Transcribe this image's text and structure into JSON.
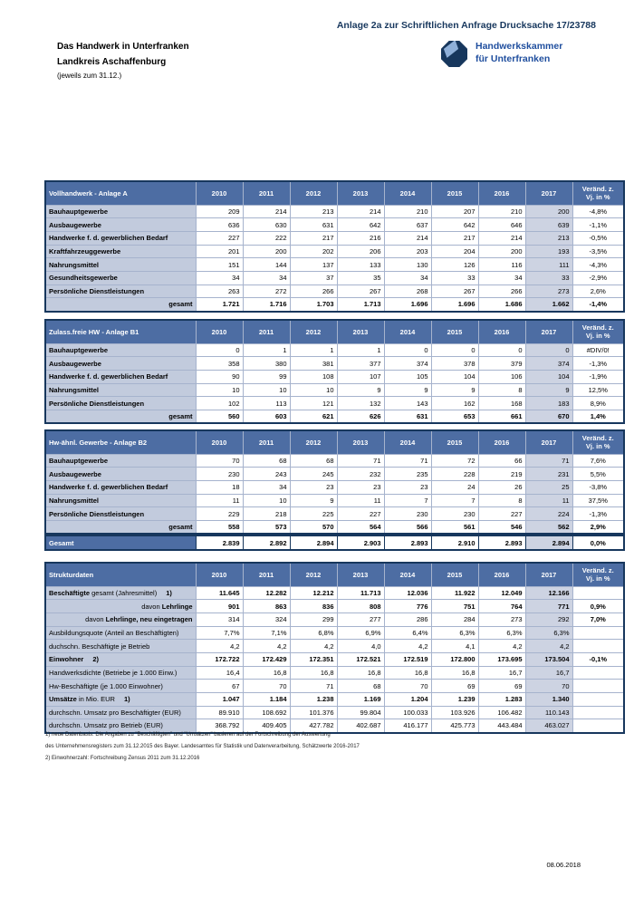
{
  "page": {
    "title": "Anlage 2a zur Schriftlichen Anfrage Drucksache 17/23788",
    "heading_line1": "Das Handwerk in Unterfranken",
    "heading_line2": "Landkreis Aschaffenburg",
    "heading_line3": "(jeweils zum 31.12.)",
    "date": "08.06.2018"
  },
  "logo": {
    "line1": "Handwerkskammer",
    "line2": "für Unterfranken"
  },
  "colors": {
    "header_blue": "#4d6da3",
    "navy_border": "#17375d",
    "label_bg": "#c2cbdd",
    "col2017_bg": "#cdd3e2",
    "logo_text_blue": "#1f4e9e",
    "logo_light_blue": "#8fb0d9",
    "title_navy": "#17375d"
  },
  "years": [
    "2010",
    "2011",
    "2012",
    "2013",
    "2014",
    "2015",
    "2016",
    "2017"
  ],
  "change_header": {
    "line1": "Veränd. z.",
    "line2": "Vj. in %"
  },
  "tables": [
    {
      "title": "Vollhandwerk - Anlage A",
      "rows": [
        {
          "label": "Bauhauptgewerbe",
          "values": [
            "209",
            "214",
            "213",
            "214",
            "210",
            "207",
            "210",
            "200"
          ],
          "change": "-4,8%"
        },
        {
          "label": "Ausbaugewerbe",
          "values": [
            "636",
            "630",
            "631",
            "642",
            "637",
            "642",
            "646",
            "639"
          ],
          "change": "-1,1%"
        },
        {
          "label": "Handwerke f. d. gewerblichen Bedarf",
          "values": [
            "227",
            "222",
            "217",
            "216",
            "214",
            "217",
            "214",
            "213"
          ],
          "change": "-0,5%"
        },
        {
          "label": "Kraftfahrzeuggewerbe",
          "values": [
            "201",
            "200",
            "202",
            "206",
            "203",
            "204",
            "200",
            "193"
          ],
          "change": "-3,5%"
        },
        {
          "label": "Nahrungsmittel",
          "values": [
            "151",
            "144",
            "137",
            "133",
            "130",
            "126",
            "116",
            "111"
          ],
          "change": "-4,3%"
        },
        {
          "label": "Gesundheitsgewerbe",
          "values": [
            "34",
            "34",
            "37",
            "35",
            "34",
            "33",
            "34",
            "33"
          ],
          "change": "-2,9%"
        },
        {
          "label": "Persönliche Dienstleistungen",
          "values": [
            "263",
            "272",
            "266",
            "267",
            "268",
            "267",
            "266",
            "273"
          ],
          "change": "2,6%"
        }
      ],
      "total": {
        "label": "gesamt",
        "values": [
          "1.721",
          "1.716",
          "1.703",
          "1.713",
          "1.696",
          "1.696",
          "1.686",
          "1.662"
        ],
        "change": "-1,4%"
      }
    },
    {
      "title": "Zulass.freie HW - Anlage B1",
      "rows": [
        {
          "label": "Bauhauptgewerbe",
          "values": [
            "0",
            "1",
            "1",
            "1",
            "0",
            "0",
            "0",
            "0"
          ],
          "change": "#DIV/0!"
        },
        {
          "label": "Ausbaugewerbe",
          "values": [
            "358",
            "380",
            "381",
            "377",
            "374",
            "378",
            "379",
            "374"
          ],
          "change": "-1,3%"
        },
        {
          "label": "Handwerke f. d. gewerblichen Bedarf",
          "values": [
            "90",
            "99",
            "108",
            "107",
            "105",
            "104",
            "106",
            "104"
          ],
          "change": "-1,9%"
        },
        {
          "label": "Nahrungsmittel",
          "values": [
            "10",
            "10",
            "10",
            "9",
            "9",
            "9",
            "8",
            "9"
          ],
          "change": "12,5%"
        },
        {
          "label": "Persönliche Dienstleistungen",
          "values": [
            "102",
            "113",
            "121",
            "132",
            "143",
            "162",
            "168",
            "183"
          ],
          "change": "8,9%"
        }
      ],
      "total": {
        "label": "gesamt",
        "values": [
          "560",
          "603",
          "621",
          "626",
          "631",
          "653",
          "661",
          "670"
        ],
        "change": "1,4%"
      }
    },
    {
      "title": "Hw-ähnl. Gewerbe - Anlage B2",
      "rows": [
        {
          "label": "Bauhauptgewerbe",
          "values": [
            "70",
            "68",
            "68",
            "71",
            "71",
            "72",
            "66",
            "71"
          ],
          "change": "7,6%"
        },
        {
          "label": "Ausbaugewerbe",
          "values": [
            "230",
            "243",
            "245",
            "232",
            "235",
            "228",
            "219",
            "231"
          ],
          "change": "5,5%"
        },
        {
          "label": "Handwerke f. d. gewerblichen Bedarf",
          "values": [
            "18",
            "34",
            "23",
            "23",
            "23",
            "24",
            "26",
            "25"
          ],
          "change": "-3,8%"
        },
        {
          "label": "Nahrungsmittel",
          "values": [
            "11",
            "10",
            "9",
            "11",
            "7",
            "7",
            "8",
            "11"
          ],
          "change": "37,5%"
        },
        {
          "label": "Persönliche Dienstleistungen",
          "values": [
            "229",
            "218",
            "225",
            "227",
            "230",
            "230",
            "227",
            "224"
          ],
          "change": "-1,3%"
        }
      ],
      "total": {
        "label": "gesamt",
        "values": [
          "558",
          "573",
          "570",
          "564",
          "566",
          "561",
          "546",
          "562"
        ],
        "change": "2,9%"
      }
    }
  ],
  "gesamt_row": {
    "label": "Gesamt",
    "values": [
      "2.839",
      "2.892",
      "2.894",
      "2.903",
      "2.893",
      "2.910",
      "2.893",
      "2.894"
    ],
    "change": "0,0%"
  },
  "strukturdaten": {
    "title": "Strukturdaten",
    "rows": [
      {
        "parts": [
          {
            "t": "Beschäftigte",
            "b": true
          },
          {
            "t": " gesamt (Jahresmittel)",
            "b": false
          }
        ],
        "ref": "1)",
        "align": "left",
        "values": [
          "11.645",
          "12.282",
          "12.212",
          "11.713",
          "12.036",
          "11.922",
          "12.049",
          "12.166"
        ],
        "bold_values": true,
        "change": "",
        "bold_change": false
      },
      {
        "parts": [
          {
            "t": "davon ",
            "b": false
          },
          {
            "t": "Lehrlinge",
            "b": true
          }
        ],
        "align": "right",
        "values": [
          "901",
          "863",
          "836",
          "808",
          "776",
          "751",
          "764",
          "771"
        ],
        "bold_values": true,
        "change": "0,9%",
        "bold_change": true
      },
      {
        "parts": [
          {
            "t": "davon ",
            "b": false
          },
          {
            "t": "Lehrlinge, neu eingetragen",
            "b": true
          }
        ],
        "align": "right",
        "values": [
          "314",
          "324",
          "299",
          "277",
          "286",
          "284",
          "273",
          "292"
        ],
        "bold_values": false,
        "change": "7,0%",
        "bold_change": true
      },
      {
        "parts": [
          {
            "t": "Ausbildungsquote (Anteil an Beschäftigten)",
            "b": false
          }
        ],
        "align": "left",
        "values": [
          "7,7%",
          "7,1%",
          "6,8%",
          "6,9%",
          "6,4%",
          "6,3%",
          "6,3%",
          "6,3%"
        ],
        "bold_values": false,
        "change": "",
        "bold_change": false
      },
      {
        "parts": [
          {
            "t": "duchschn. Beschäftigte je Betrieb",
            "b": false
          }
        ],
        "align": "left",
        "values": [
          "4,2",
          "4,2",
          "4,2",
          "4,0",
          "4,2",
          "4,1",
          "4,2",
          "4,2"
        ],
        "bold_values": false,
        "change": "",
        "bold_change": false
      },
      {
        "parts": [
          {
            "t": "Einwohner",
            "b": true
          }
        ],
        "ref": "2)",
        "align": "left",
        "values": [
          "172.722",
          "172.429",
          "172.351",
          "172.521",
          "172.519",
          "172.800",
          "173.695",
          "173.504"
        ],
        "bold_values": true,
        "change": "-0,1%",
        "bold_change": true
      },
      {
        "parts": [
          {
            "t": "Handwerksdichte (Betriebe je 1.000 Einw.)",
            "b": false
          }
        ],
        "align": "left",
        "values": [
          "16,4",
          "16,8",
          "16,8",
          "16,8",
          "16,8",
          "16,8",
          "16,7",
          "16,7"
        ],
        "bold_values": false,
        "change": "",
        "bold_change": false
      },
      {
        "parts": [
          {
            "t": "Hw-Beschäftigte (je 1.000 Einwohner)",
            "b": false
          }
        ],
        "align": "left",
        "values": [
          "67",
          "70",
          "71",
          "68",
          "70",
          "69",
          "69",
          "70"
        ],
        "bold_values": false,
        "change": "",
        "bold_change": false
      },
      {
        "parts": [
          {
            "t": "Umsätze",
            "b": true
          },
          {
            "t": " in Mio. EUR",
            "b": false
          }
        ],
        "ref": "1)",
        "align": "left",
        "values": [
          "1.047",
          "1.184",
          "1.238",
          "1.169",
          "1.204",
          "1.239",
          "1.283",
          "1.340"
        ],
        "bold_values": true,
        "change": "",
        "bold_change": false
      },
      {
        "parts": [
          {
            "t": "durchschn. Umsatz pro Beschäftigter (EUR)",
            "b": false
          }
        ],
        "align": "left",
        "values": [
          "89.910",
          "108.692",
          "101.376",
          "99.804",
          "100.033",
          "103.926",
          "106.482",
          "110.143"
        ],
        "bold_values": false,
        "change": "",
        "bold_change": false
      },
      {
        "parts": [
          {
            "t": "durchschn. Umsatz pro Betrieb (EUR)",
            "b": false
          }
        ],
        "align": "left",
        "values": [
          "368.792",
          "409.405",
          "427.782",
          "402.687",
          "416.177",
          "425.773",
          "443.484",
          "463.027"
        ],
        "bold_values": false,
        "change": "",
        "bold_change": false
      }
    ]
  },
  "footnotes": [
    "1) neue Datenbasis: Die Angaben zu \"Beschäftigten\" und \"Umsätzen\" basieren auf der Fortschreibung der Auswertung",
    "des Unternehmensregisters zum 31.12.2015 des Bayer. Landesamtes für Statistik und Datenverarbeitung, Schätzwerte 2016-2017",
    "2) Einwohnerzahl: Fortschreibung Zensus 2011 zum 31.12.2016"
  ]
}
